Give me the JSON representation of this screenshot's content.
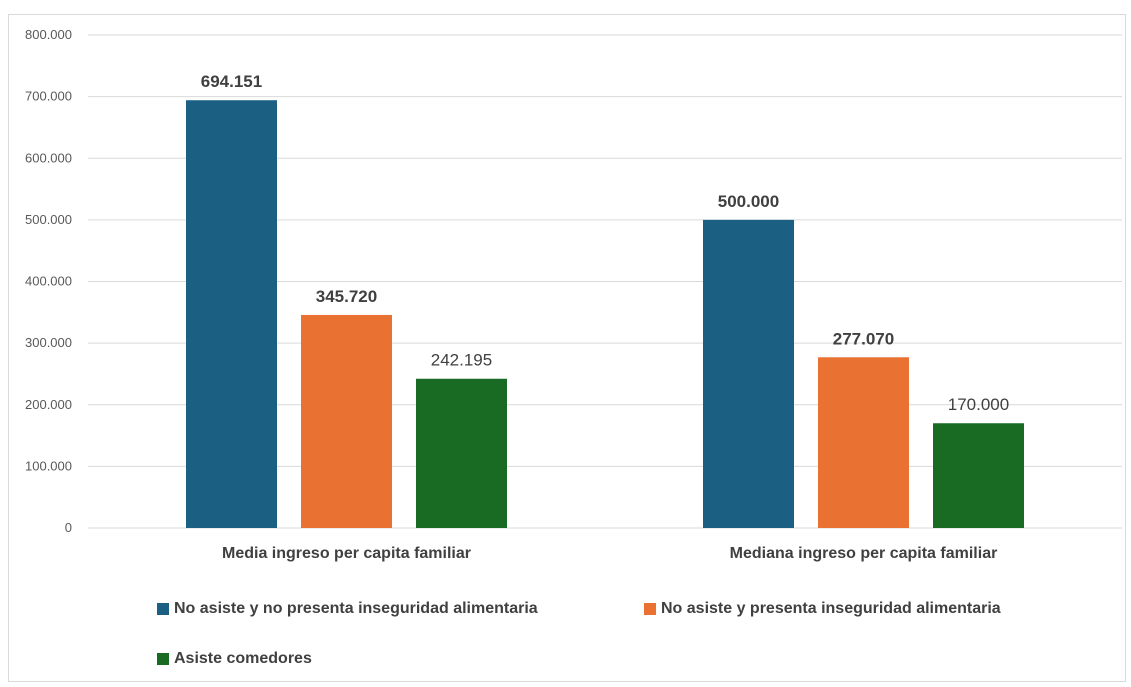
{
  "chart_data": {
    "type": "bar",
    "title": "",
    "xlabel": "",
    "ylabel": "",
    "categories": [
      "Media ingreso per capita familiar",
      "Mediana ingreso per capita familiar"
    ],
    "series": [
      {
        "name": "No asiste y no presenta inseguridad alimentaria",
        "color": "#1b5f82",
        "values": [
          694151,
          500000
        ],
        "labels": [
          "694.151",
          "500.000"
        ],
        "label_bold": true
      },
      {
        "name": "No asiste y presenta inseguridad alimentaria",
        "color": "#e97132",
        "values": [
          345720,
          277070
        ],
        "labels": [
          "345.720",
          "277.070"
        ],
        "label_bold": true
      },
      {
        "name": "Asiste comedores",
        "color": "#196b24",
        "values": [
          242195,
          170000
        ],
        "labels": [
          "242.195",
          "170.000"
        ],
        "label_bold": false
      }
    ],
    "ylim": [
      0,
      800000
    ],
    "y_ticks": [
      0,
      100000,
      200000,
      300000,
      400000,
      500000,
      600000,
      700000,
      800000
    ],
    "y_tick_labels": [
      "0",
      "100.000",
      "200.000",
      "300.000",
      "400.000",
      "500.000",
      "600.000",
      "700.000",
      "800.000"
    ],
    "grid": true,
    "legend_position": "bottom"
  }
}
